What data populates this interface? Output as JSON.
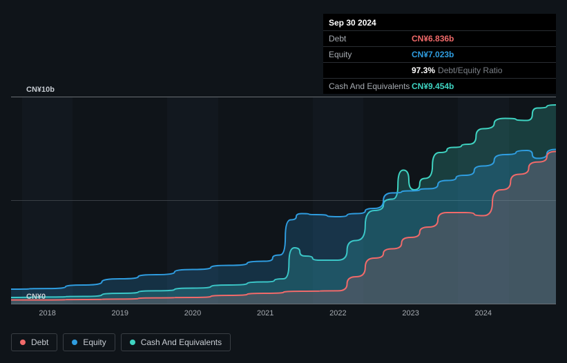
{
  "tooltip": {
    "date": "Sep 30 2024",
    "rows": [
      {
        "label": "Debt",
        "value": "CN¥6.836b",
        "color": "#f16a6a"
      },
      {
        "label": "Equity",
        "value": "CN¥7.023b",
        "color": "#2f9de0"
      },
      {
        "label": "",
        "value": "97.3%",
        "suffix": "Debt/Equity Ratio",
        "color": "#ffffff"
      },
      {
        "label": "Cash And Equivalents",
        "value": "CN¥9.454b",
        "color": "#3fd4c2"
      }
    ]
  },
  "chart": {
    "type": "area",
    "background_color": "#0f1419",
    "panel_stripe_color": "#12181f",
    "grid_color": "#3a3f45",
    "baseline_color": "#6a6f75",
    "y_axis": {
      "min": 0,
      "max": 10,
      "unit": "CN¥",
      "suffix": "b",
      "ticks": [
        {
          "v": 0,
          "label": "CN¥0"
        },
        {
          "v": 5,
          "label": ""
        },
        {
          "v": 10,
          "label": "CN¥10b"
        }
      ]
    },
    "x_axis": {
      "min": 2017.5,
      "max": 2025.0,
      "ticks": [
        2018,
        2019,
        2020,
        2021,
        2022,
        2023,
        2024
      ]
    },
    "series": [
      {
        "name": "Cash And Equivalents",
        "color": "#3fd4c2",
        "fill_opacity": 0.22,
        "points": [
          [
            2017.5,
            0.3
          ],
          [
            2018,
            0.32
          ],
          [
            2018.5,
            0.35
          ],
          [
            2019,
            0.5
          ],
          [
            2019.5,
            0.62
          ],
          [
            2020,
            0.75
          ],
          [
            2020.5,
            0.9
          ],
          [
            2021,
            1.05
          ],
          [
            2021.25,
            1.2
          ],
          [
            2021.4,
            2.7
          ],
          [
            2021.55,
            2.3
          ],
          [
            2021.75,
            2.1
          ],
          [
            2022,
            2.1
          ],
          [
            2022.25,
            3.05
          ],
          [
            2022.5,
            4.5
          ],
          [
            2022.75,
            5.05
          ],
          [
            2022.9,
            6.45
          ],
          [
            2023.05,
            5.5
          ],
          [
            2023.2,
            6.05
          ],
          [
            2023.4,
            7.3
          ],
          [
            2023.6,
            7.55
          ],
          [
            2023.8,
            7.7
          ],
          [
            2024,
            8.45
          ],
          [
            2024.3,
            8.95
          ],
          [
            2024.6,
            8.85
          ],
          [
            2024.75,
            9.45
          ],
          [
            2025.0,
            9.6
          ]
        ]
      },
      {
        "name": "Equity",
        "color": "#2f9de0",
        "fill_opacity": 0.22,
        "points": [
          [
            2017.5,
            0.7
          ],
          [
            2018,
            0.73
          ],
          [
            2018.5,
            0.9
          ],
          [
            2019,
            1.2
          ],
          [
            2019.5,
            1.4
          ],
          [
            2020,
            1.65
          ],
          [
            2020.5,
            1.85
          ],
          [
            2021,
            2.05
          ],
          [
            2021.2,
            2.35
          ],
          [
            2021.35,
            4.05
          ],
          [
            2021.5,
            4.35
          ],
          [
            2021.7,
            4.3
          ],
          [
            2022,
            4.2
          ],
          [
            2022.25,
            4.35
          ],
          [
            2022.5,
            4.6
          ],
          [
            2022.75,
            5.35
          ],
          [
            2023,
            5.45
          ],
          [
            2023.25,
            5.55
          ],
          [
            2023.5,
            5.95
          ],
          [
            2023.75,
            6.2
          ],
          [
            2024,
            6.65
          ],
          [
            2024.3,
            7.2
          ],
          [
            2024.6,
            7.4
          ],
          [
            2024.75,
            7.02
          ],
          [
            2025.0,
            7.45
          ]
        ]
      },
      {
        "name": "Debt",
        "color": "#f16a6a",
        "fill_opacity": 0.18,
        "points": [
          [
            2017.5,
            0.18
          ],
          [
            2018,
            0.18
          ],
          [
            2018.5,
            0.2
          ],
          [
            2019,
            0.22
          ],
          [
            2019.5,
            0.28
          ],
          [
            2020,
            0.3
          ],
          [
            2020.5,
            0.4
          ],
          [
            2021,
            0.5
          ],
          [
            2021.5,
            0.6
          ],
          [
            2022,
            0.62
          ],
          [
            2022.25,
            1.3
          ],
          [
            2022.5,
            2.2
          ],
          [
            2022.75,
            2.65
          ],
          [
            2023,
            3.2
          ],
          [
            2023.25,
            3.7
          ],
          [
            2023.5,
            4.4
          ],
          [
            2023.75,
            4.4
          ],
          [
            2024,
            4.25
          ],
          [
            2024.25,
            5.5
          ],
          [
            2024.5,
            6.25
          ],
          [
            2024.75,
            6.84
          ],
          [
            2025.0,
            7.35
          ]
        ]
      }
    ]
  },
  "legend": [
    {
      "label": "Debt",
      "color": "#f16a6a"
    },
    {
      "label": "Equity",
      "color": "#2f9de0"
    },
    {
      "label": "Cash And Equivalents",
      "color": "#3fd4c2"
    }
  ]
}
